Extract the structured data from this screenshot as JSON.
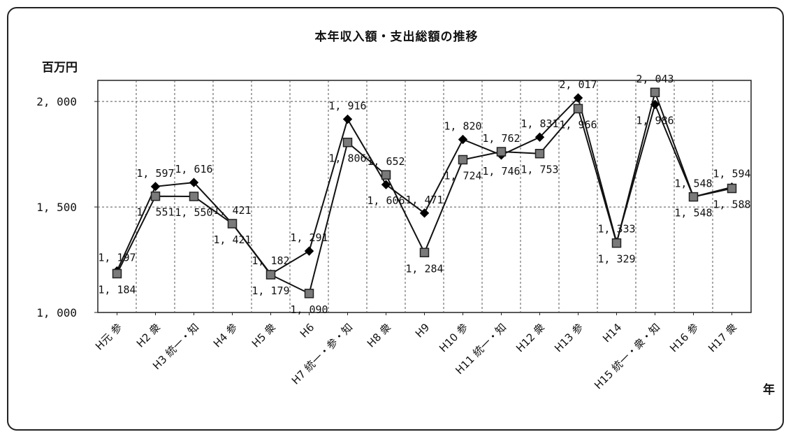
{
  "chart_data": {
    "type": "line",
    "title": "本年収入額・支出総額の推移",
    "ylabel": "百万円",
    "xlabel": "年",
    "ylim": [
      1000,
      2100
    ],
    "yticks": [
      1000,
      1500,
      2000
    ],
    "ytick_labels": [
      "1, 000",
      "1, 500",
      "2, 000"
    ],
    "grid": true,
    "categories": [
      "H元 参",
      "H2 衆",
      "H3 統一・知",
      "H4 参",
      "H5 衆",
      "H6",
      "H7 統一・参・知",
      "H8 衆",
      "H9",
      "H10 参",
      "H11 統一・知",
      "H12 衆",
      "H13 参",
      "H14",
      "H15 統一・衆・知",
      "H16 参",
      "H17 衆"
    ],
    "series": [
      {
        "marker": "diamond",
        "color": "#000000",
        "values": [
          1197,
          1597,
          1616,
          1421,
          1182,
          1291,
          1916,
          1606,
          1471,
          1820,
          1746,
          1831,
          2017,
          1333,
          1986,
          1548,
          1594
        ],
        "labels": [
          "1, 197",
          "1, 597",
          "1, 616",
          "1, 421",
          "1, 182",
          "1, 291",
          "1, 916",
          "1, 606",
          "1, 471",
          "1, 820",
          "1, 746",
          "1, 831",
          "2, 017",
          "1, 333",
          "1, 986",
          "1, 548",
          "1, 594"
        ]
      },
      {
        "marker": "square",
        "color": "#7a7a7a",
        "values": [
          1184,
          1551,
          1550,
          1421,
          1179,
          1090,
          1806,
          1652,
          1284,
          1724,
          1762,
          1753,
          1966,
          1329,
          2043,
          1548,
          1588
        ],
        "labels": [
          "1, 184",
          "1, 551",
          "1, 550",
          "1, 421",
          "1, 179",
          "1, 090",
          "1, 806",
          "1, 652",
          "1, 284",
          "1, 724",
          "1, 762",
          "1, 753",
          "1, 966",
          "1, 329",
          "2, 043",
          "1, 548",
          "1, 588"
        ]
      }
    ]
  }
}
